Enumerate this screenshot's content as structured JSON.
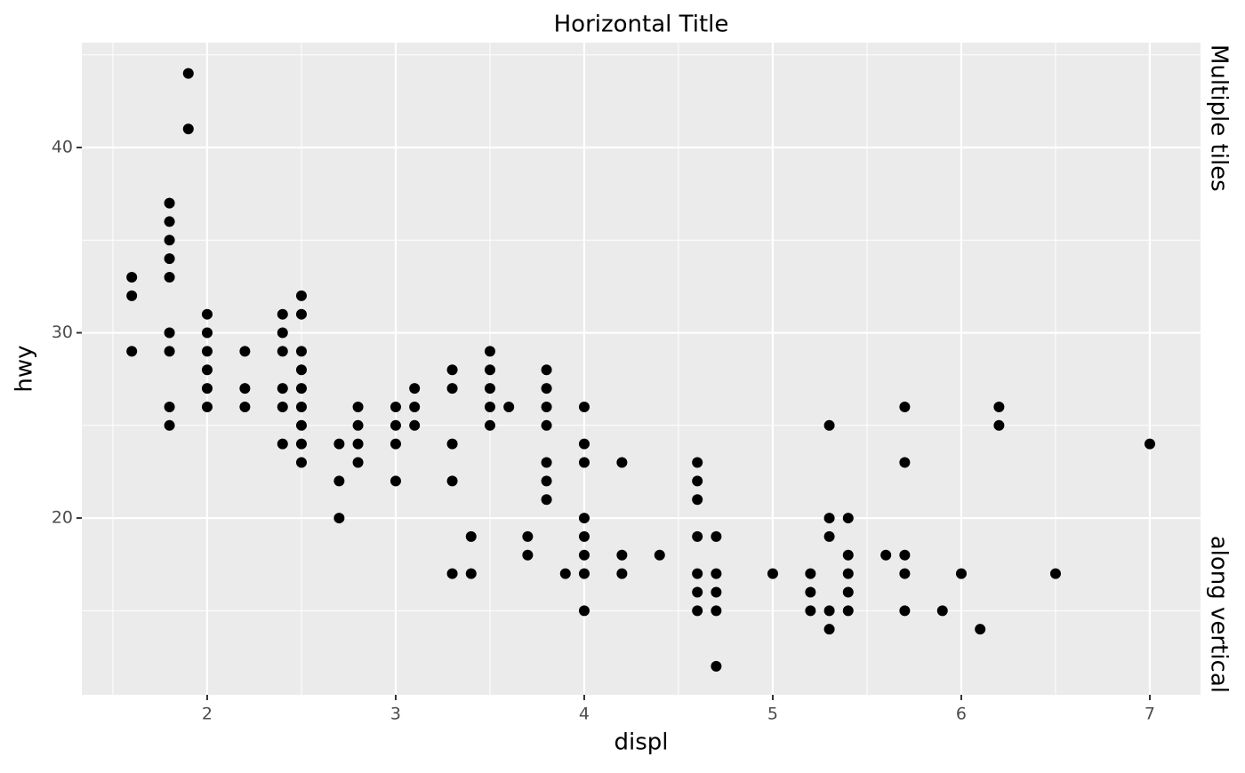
{
  "chart_data": {
    "type": "scatter",
    "title": "Horizontal Title",
    "x_label": "displ",
    "y_label": "hwy",
    "right_labels": [
      "Multiple tiles",
      "along vertical"
    ],
    "x": [
      1.6,
      1.6,
      1.6,
      1.8,
      1.8,
      1.8,
      1.8,
      1.8,
      1.8,
      1.8,
      1.8,
      1.8,
      1.9,
      1.9,
      2.0,
      2.0,
      2.0,
      2.0,
      2.0,
      2.0,
      2.2,
      2.2,
      2.2,
      2.4,
      2.4,
      2.4,
      2.4,
      2.4,
      2.4,
      2.5,
      2.5,
      2.5,
      2.5,
      2.5,
      2.5,
      2.5,
      2.5,
      2.5,
      2.7,
      2.7,
      2.7,
      2.8,
      2.8,
      2.8,
      2.8,
      3.0,
      3.0,
      3.0,
      3.0,
      3.1,
      3.1,
      3.1,
      3.3,
      3.3,
      3.3,
      3.3,
      3.3,
      3.4,
      3.4,
      3.5,
      3.5,
      3.5,
      3.5,
      3.5,
      3.6,
      3.7,
      3.7,
      3.8,
      3.8,
      3.8,
      3.8,
      3.8,
      3.8,
      3.8,
      3.9,
      4.0,
      4.0,
      4.0,
      4.0,
      4.0,
      4.0,
      4.0,
      4.0,
      4.2,
      4.2,
      4.2,
      4.4,
      4.6,
      4.6,
      4.6,
      4.6,
      4.6,
      4.6,
      4.6,
      4.7,
      4.7,
      4.7,
      4.7,
      4.7,
      5.0,
      5.2,
      5.2,
      5.2,
      5.3,
      5.3,
      5.3,
      5.3,
      5.3,
      5.4,
      5.4,
      5.4,
      5.4,
      5.4,
      5.6,
      5.7,
      5.7,
      5.7,
      5.7,
      5.7,
      5.9,
      6.0,
      6.1,
      6.2,
      6.2,
      6.5,
      7.0
    ],
    "y": [
      33,
      32,
      29,
      37,
      36,
      35,
      34,
      33,
      30,
      29,
      26,
      25,
      44,
      41,
      31,
      30,
      29,
      28,
      27,
      26,
      29,
      27,
      26,
      31,
      30,
      29,
      27,
      26,
      24,
      32,
      31,
      29,
      28,
      27,
      26,
      25,
      24,
      23,
      24,
      22,
      20,
      26,
      25,
      24,
      23,
      26,
      25,
      24,
      22,
      27,
      26,
      25,
      28,
      27,
      24,
      22,
      17,
      19,
      17,
      29,
      28,
      27,
      26,
      25,
      26,
      19,
      18,
      28,
      27,
      26,
      25,
      23,
      22,
      21,
      17,
      26,
      24,
      23,
      20,
      19,
      18,
      17,
      15,
      23,
      18,
      17,
      18,
      23,
      22,
      21,
      19,
      17,
      16,
      15,
      19,
      17,
      16,
      15,
      12,
      17,
      17,
      16,
      15,
      25,
      20,
      19,
      15,
      14,
      20,
      18,
      17,
      16,
      15,
      18,
      26,
      23,
      18,
      17,
      15,
      15,
      17,
      14,
      26,
      25,
      17,
      24
    ],
    "color": "#000000",
    "xlim": [
      1.335,
      7.269
    ],
    "ylim": [
      10.46,
      45.66
    ],
    "xticks": [
      2,
      3,
      4,
      5,
      6,
      7
    ],
    "yticks": [
      20,
      30,
      40
    ],
    "grid": true
  }
}
